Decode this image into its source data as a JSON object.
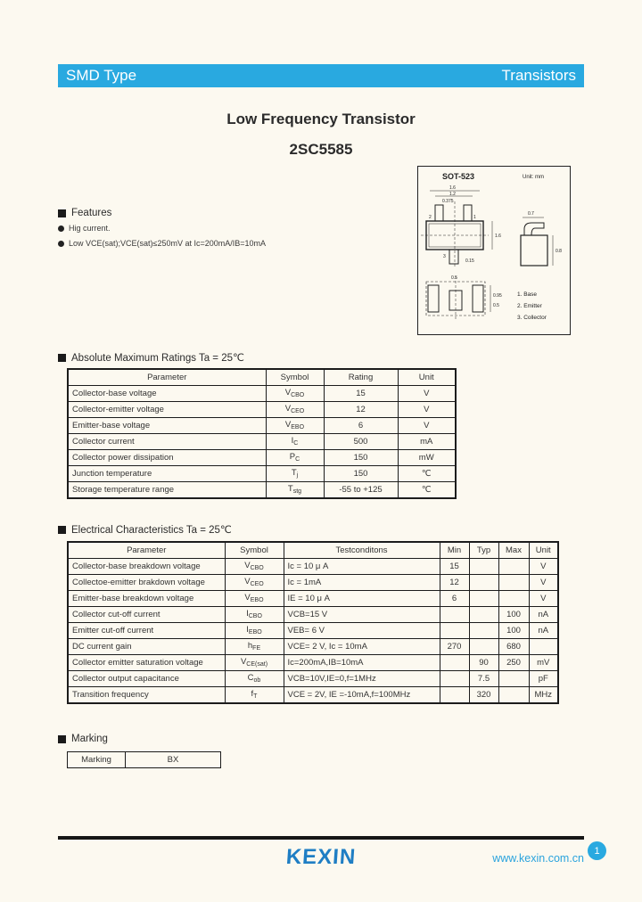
{
  "colors": {
    "accent": "#29a9e0",
    "logo_blue": "#1f7ec4",
    "link_blue": "#2aa3dd"
  },
  "header": {
    "left": "SMD Type",
    "right": "Transistors"
  },
  "title": {
    "line1": "Low Frequency Transistor",
    "line2": "2SC5585"
  },
  "features": {
    "heading": "Features",
    "items": [
      "Hig current.",
      "Low VCE(sat);VCE(sat)≤250mV at Ic=200mA/IB=10mA"
    ]
  },
  "package": {
    "name": "SOT-523",
    "unit": "Unit: mm",
    "pins": [
      "1. Base",
      "2. Emitter",
      "3. Collector"
    ],
    "pin_numbers": [
      "2",
      "1",
      "3"
    ],
    "dims": [
      "1.6",
      "1.2",
      "0.375",
      "1.6",
      "0.15",
      "0.7",
      "0.8",
      "0.5",
      "0.95",
      "0.5"
    ]
  },
  "abs_max": {
    "heading": "Absolute Maximum Ratings Ta = 25℃",
    "columns": [
      "Parameter",
      "Symbol",
      "Rating",
      "Unit"
    ],
    "rows": [
      {
        "param": "Collector-base voltage",
        "sym": "V",
        "sub": "CBO",
        "rating": "15",
        "unit": "V"
      },
      {
        "param": "Collector-emitter voltage",
        "sym": "V",
        "sub": "CEO",
        "rating": "12",
        "unit": "V"
      },
      {
        "param": "Emitter-base voltage",
        "sym": "V",
        "sub": "EBO",
        "rating": "6",
        "unit": "V"
      },
      {
        "param": "Collector current",
        "sym": "I",
        "sub": "C",
        "rating": "500",
        "unit": "mA"
      },
      {
        "param": "Collector power dissipation",
        "sym": "P",
        "sub": "C",
        "rating": "150",
        "unit": "mW"
      },
      {
        "param": "Junction temperature",
        "sym": "T",
        "sub": "j",
        "rating": "150",
        "unit": "℃"
      },
      {
        "param": "Storage temperature range",
        "sym": "T",
        "sub": "stg",
        "rating": "-55 to +125",
        "unit": "℃"
      }
    ]
  },
  "elec": {
    "heading": "Electrical Characteristics Ta = 25℃",
    "columns": [
      "Parameter",
      "Symbol",
      "Testconditons",
      "Min",
      "Typ",
      "Max",
      "Unit"
    ],
    "rows": [
      {
        "param": "Collector-base breakdown voltage",
        "sym": "V",
        "sub": "CBO",
        "cond": "Ic = 10 μ A",
        "min": "15",
        "typ": "",
        "max": "",
        "unit": "V"
      },
      {
        "param": "Collectoe-emitter brakdown voltage",
        "sym": "V",
        "sub": "CEO",
        "cond": "Ic = 1mA",
        "min": "12",
        "typ": "",
        "max": "",
        "unit": "V"
      },
      {
        "param": "Emitter-base breakdown voltage",
        "sym": "V",
        "sub": "EBO",
        "cond": "IE = 10 μ A",
        "min": "6",
        "typ": "",
        "max": "",
        "unit": "V"
      },
      {
        "param": "Collector cut-off current",
        "sym": "I",
        "sub": "CBO",
        "cond": "VCB=15 V",
        "min": "",
        "typ": "",
        "max": "100",
        "unit": "nA"
      },
      {
        "param": "Emitter cut-off current",
        "sym": "I",
        "sub": "EBO",
        "cond": "VEB= 6 V",
        "min": "",
        "typ": "",
        "max": "100",
        "unit": "nA"
      },
      {
        "param": "DC current gain",
        "sym": "h",
        "sub": "FE",
        "cond": "VCE= 2 V, Ic = 10mA",
        "min": "270",
        "typ": "",
        "max": "680",
        "unit": ""
      },
      {
        "param": "Collector emitter saturation voltage",
        "sym": "V",
        "sub": "CE(sat)",
        "cond": "Ic=200mA,IB=10mA",
        "min": "",
        "typ": "90",
        "max": "250",
        "unit": "mV"
      },
      {
        "param": "Collector output capacitance",
        "sym": "C",
        "sub": "ob",
        "cond": "VCB=10V,IE=0,f=1MHz",
        "min": "",
        "typ": "7.5",
        "max": "",
        "unit": "pF"
      },
      {
        "param": "Transition frequency",
        "sym": "f",
        "sub": "T",
        "cond": "VCE = 2V, IE =-10mA,f=100MHz",
        "min": "",
        "typ": "320",
        "max": "",
        "unit": "MHz"
      }
    ]
  },
  "marking": {
    "heading": "Marking",
    "label": "Marking",
    "value": "BX"
  },
  "footer": {
    "logo": "KEXIN",
    "url": "www.kexin.com.cn",
    "page": "1"
  }
}
